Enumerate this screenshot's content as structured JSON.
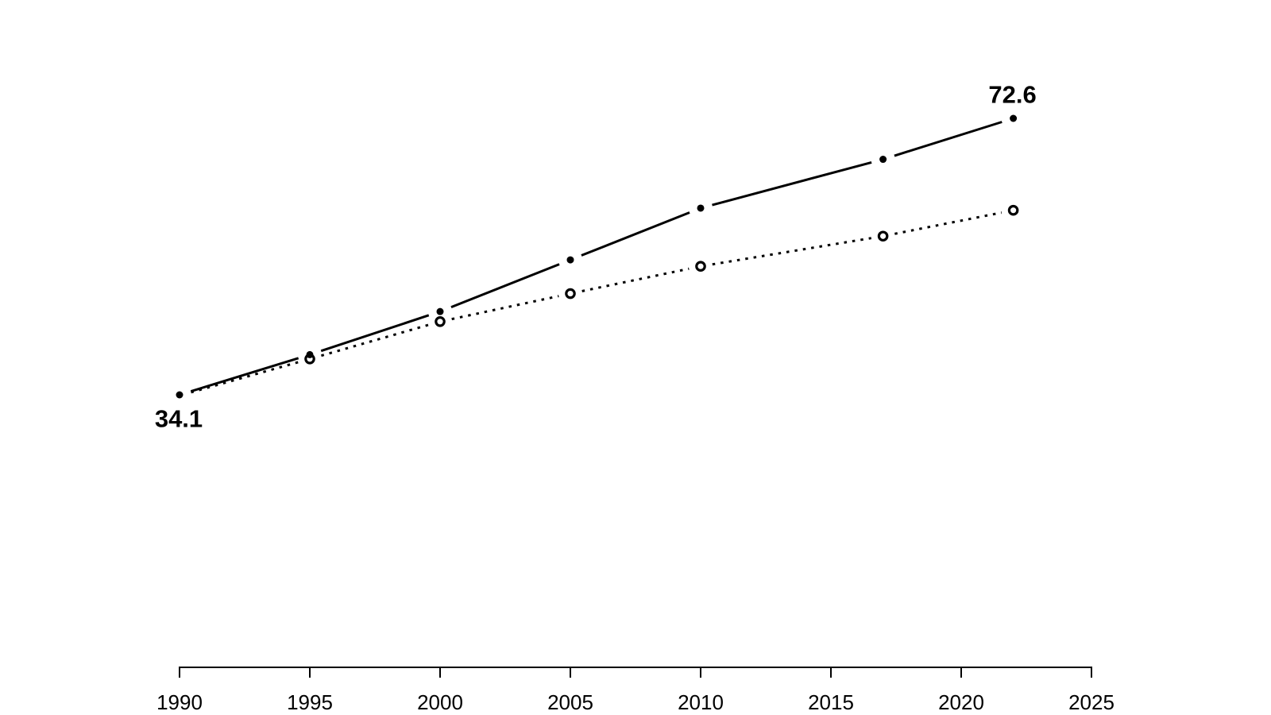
{
  "chart_data": {
    "type": "line",
    "title": "",
    "xlabel": "",
    "ylabel": "",
    "grid": false,
    "legend": null,
    "background_color": "#ffffff",
    "line_color": "#000000",
    "xlim": [
      1990,
      2025
    ],
    "x": [
      1990,
      1995,
      2000,
      2005,
      2010,
      2017,
      2022
    ],
    "series": [
      {
        "name": "solid-line-filled-dots",
        "style": "solid",
        "marker": "filled-dot",
        "values": [
          34.1,
          39.7,
          45.7,
          52.9,
          60.1,
          66.9,
          72.6
        ]
      },
      {
        "name": "dotted-line-open-circles",
        "style": "dotted",
        "marker": "open-circle",
        "first_marker_hidden": true,
        "values": [
          34.0,
          39.1,
          44.3,
          48.2,
          52.0,
          56.2,
          59.8
        ]
      }
    ],
    "x_ticks": [
      1990,
      1995,
      2000,
      2005,
      2010,
      2015,
      2020,
      2025
    ],
    "x_tick_labels": [
      "1990",
      "1995",
      "2000",
      "2005",
      "2010",
      "2015",
      "2020",
      "2025"
    ],
    "point_labels": [
      {
        "text": "34.1",
        "series": 0,
        "point": 0,
        "position": "below"
      },
      {
        "text": "72.6",
        "series": 0,
        "point": 6,
        "position": "above"
      }
    ]
  }
}
